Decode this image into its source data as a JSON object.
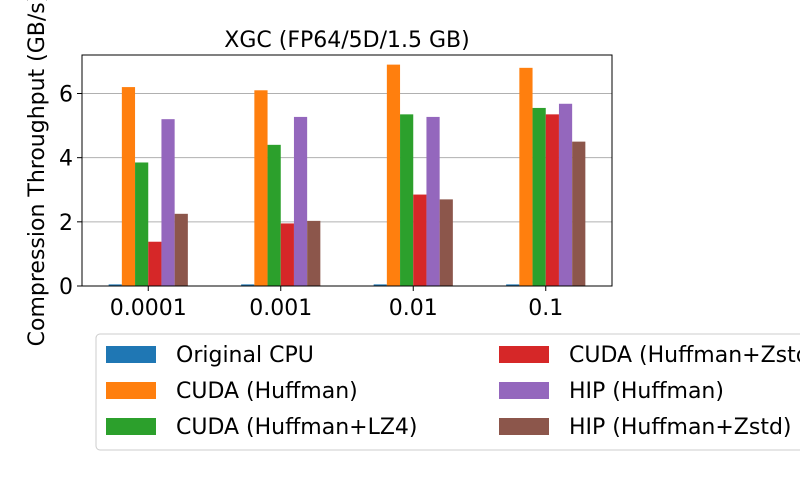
{
  "chart_data": {
    "type": "bar",
    "title": "XGC (FP64/5D/1.5 GB)",
    "ylabel": "Compression Throughput (GB/s)",
    "xlabel": "",
    "categories": [
      "0.0001",
      "0.001",
      "0.01",
      "0.1"
    ],
    "ylim": [
      0,
      7.2
    ],
    "yticks": [
      0,
      2,
      4,
      6
    ],
    "grid": "y",
    "legend_position": "below",
    "series": [
      {
        "name": "Original CPU",
        "color": "#1f77b4",
        "values": [
          0.05,
          0.05,
          0.05,
          0.05
        ]
      },
      {
        "name": "CUDA (Huffman)",
        "color": "#ff7f0e",
        "values": [
          6.2,
          6.1,
          6.9,
          6.8
        ]
      },
      {
        "name": "CUDA (Huffman+LZ4)",
        "color": "#2ca02c",
        "values": [
          3.85,
          4.4,
          5.35,
          5.55
        ]
      },
      {
        "name": "CUDA (Huffman+Zstd)",
        "color": "#d62728",
        "values": [
          1.38,
          1.95,
          2.85,
          5.35
        ]
      },
      {
        "name": "HIP (Huffman)",
        "color": "#9467bd",
        "values": [
          5.2,
          5.27,
          5.27,
          5.68
        ]
      },
      {
        "name": "HIP (Huffman+Zstd)",
        "color": "#8c564b",
        "values": [
          2.25,
          2.03,
          2.7,
          4.5
        ]
      }
    ]
  }
}
